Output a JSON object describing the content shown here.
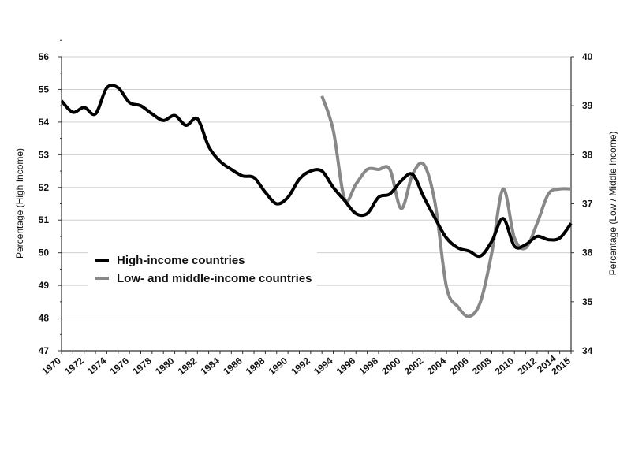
{
  "chart_data": {
    "type": "line",
    "title": "",
    "xlabel": "",
    "ylabel_left": "Percentage (High Income)",
    "ylabel_right": "Percentage (Low / Middle Income)",
    "xlim": [
      1970,
      2015
    ],
    "ylim_left": [
      47,
      56
    ],
    "ylim_right": [
      34,
      40
    ],
    "grid": true,
    "legend_position": "center-left",
    "x_tick_labels": [
      "1970",
      "1972",
      "1974",
      "1976",
      "1978",
      "1980",
      "1982",
      "1984",
      "1986",
      "1988",
      "1990",
      "1992",
      "1994",
      "1996",
      "1998",
      "2000",
      "2002",
      "2004",
      "2006",
      "2008",
      "2010",
      "2012",
      "2014",
      "2015"
    ],
    "y_left_ticks": [
      "47",
      "48",
      "49",
      "50",
      "51",
      "52",
      "53",
      "54",
      "55",
      "56"
    ],
    "y_right_ticks": [
      "34",
      "35",
      "36",
      "37",
      "38",
      "39",
      "40"
    ],
    "series": [
      {
        "name": "High-income countries",
        "axis": "left",
        "color": "#000000",
        "x": [
          1970,
          1971,
          1972,
          1973,
          1974,
          1975,
          1976,
          1977,
          1978,
          1979,
          1980,
          1981,
          1982,
          1983,
          1984,
          1985,
          1986,
          1987,
          1988,
          1989,
          1990,
          1991,
          1992,
          1993,
          1994,
          1995,
          1996,
          1997,
          1998,
          1999,
          2000,
          2001,
          2002,
          2003,
          2004,
          2005,
          2006,
          2007,
          2008,
          2009,
          2010,
          2011,
          2012,
          2013,
          2014,
          2015
        ],
        "values": [
          54.65,
          54.3,
          54.45,
          54.25,
          55.05,
          55.05,
          54.6,
          54.5,
          54.25,
          54.05,
          54.2,
          53.9,
          54.1,
          53.25,
          52.8,
          52.55,
          52.35,
          52.3,
          51.85,
          51.5,
          51.7,
          52.25,
          52.5,
          52.5,
          52.0,
          51.6,
          51.2,
          51.2,
          51.7,
          51.8,
          52.2,
          52.4,
          51.7,
          51.05,
          50.45,
          50.15,
          50.05,
          49.9,
          50.35,
          51.05,
          50.2,
          50.25,
          50.5,
          50.4,
          50.45,
          50.9
        ]
      },
      {
        "name": "Low- and middle-income countries",
        "axis": "right",
        "color": "#888888",
        "x": [
          1993,
          1994,
          1995,
          1996,
          1997,
          1998,
          1999,
          2000,
          2001,
          2002,
          2003,
          2004,
          2005,
          2006,
          2007,
          2008,
          2009,
          2010,
          2011,
          2012,
          2013,
          2014,
          2015
        ],
        "values": [
          39.2,
          38.5,
          37.1,
          37.4,
          37.7,
          37.7,
          37.7,
          36.9,
          37.6,
          37.8,
          37.0,
          35.3,
          34.9,
          34.7,
          35.0,
          36.0,
          37.3,
          36.3,
          36.1,
          36.6,
          37.2,
          37.3,
          37.3
        ]
      }
    ]
  }
}
